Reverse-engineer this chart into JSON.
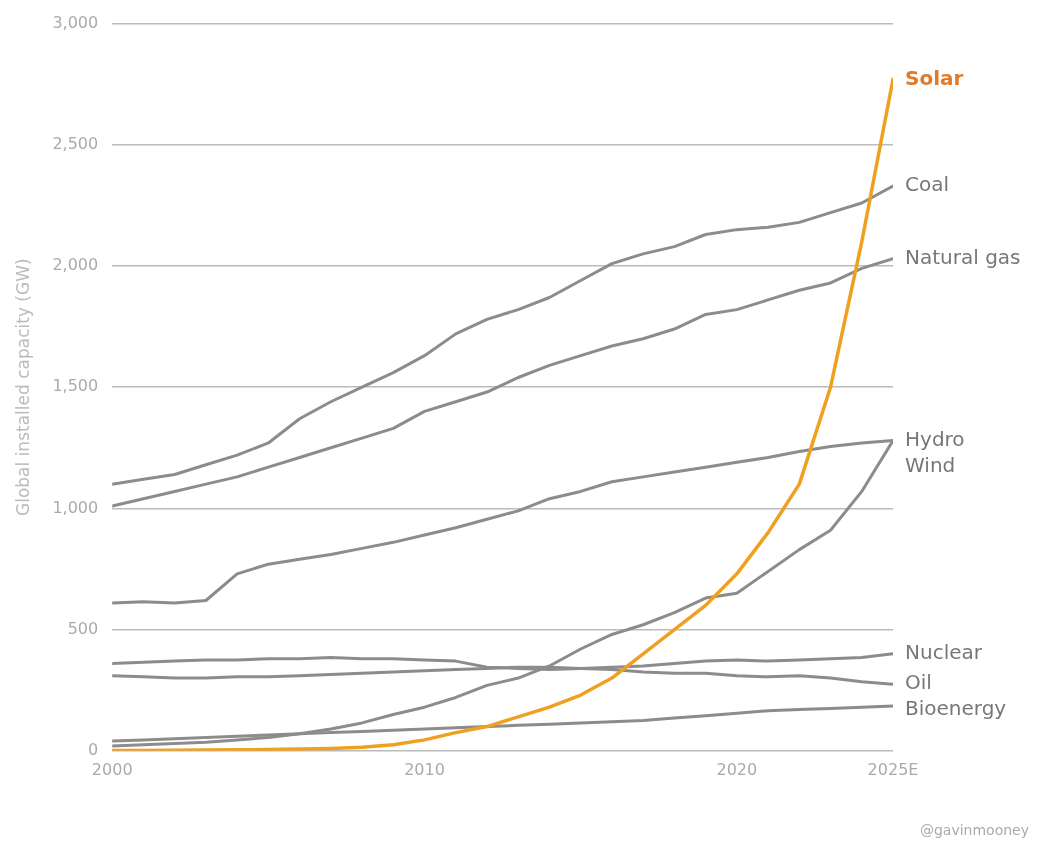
{
  "chart_data": {
    "type": "line",
    "ylabel": "Global installed capacity (GW)",
    "x": [
      2000,
      2001,
      2002,
      2003,
      2004,
      2005,
      2006,
      2007,
      2008,
      2009,
      2010,
      2011,
      2012,
      2013,
      2014,
      2015,
      2016,
      2017,
      2018,
      2019,
      2020,
      2021,
      2022,
      2023,
      2024,
      2025
    ],
    "xlim": [
      2000,
      2025
    ],
    "xticks": [
      2000,
      2010,
      2020,
      {
        "value": 2025,
        "label": "2025E"
      }
    ],
    "ylim": [
      0,
      3000
    ],
    "yticks": [
      0,
      {
        "value": 500,
        "label": "500"
      },
      {
        "value": 1000,
        "label": "1,000"
      },
      {
        "value": 1500,
        "label": "1,500"
      },
      {
        "value": 2000,
        "label": "2,000"
      },
      {
        "value": 2500,
        "label": "2,500"
      },
      {
        "value": 3000,
        "label": "3,000"
      }
    ],
    "grid": "y",
    "legend": false,
    "marker": "none",
    "line_style": "solid",
    "series": [
      {
        "name": "Solar",
        "color": "#f0a020",
        "values": [
          1,
          1,
          2,
          3,
          4,
          5,
          7,
          10,
          15,
          25,
          45,
          75,
          100,
          140,
          180,
          230,
          300,
          400,
          500,
          600,
          730,
          900,
          1100,
          1500,
          2100,
          2770
        ]
      },
      {
        "name": "Coal",
        "color": "#8c8c8c",
        "values": [
          1100,
          1120,
          1140,
          1180,
          1220,
          1270,
          1370,
          1440,
          1500,
          1560,
          1630,
          1720,
          1780,
          1820,
          1870,
          1940,
          2010,
          2050,
          2080,
          2130,
          2150,
          2160,
          2180,
          2220,
          2260,
          2330
        ]
      },
      {
        "name": "Natural gas",
        "color": "#8c8c8c",
        "values": [
          1010,
          1040,
          1070,
          1100,
          1130,
          1170,
          1210,
          1250,
          1290,
          1330,
          1400,
          1440,
          1480,
          1540,
          1590,
          1630,
          1670,
          1700,
          1740,
          1800,
          1820,
          1860,
          1900,
          1930,
          1990,
          2030
        ]
      },
      {
        "name": "Hydro",
        "color": "#8c8c8c",
        "values": [
          610,
          615,
          610,
          620,
          730,
          770,
          790,
          810,
          835,
          860,
          890,
          920,
          955,
          990,
          1040,
          1070,
          1110,
          1130,
          1150,
          1170,
          1190,
          1210,
          1235,
          1255,
          1270,
          1280
        ]
      },
      {
        "name": "Wind",
        "color": "#8c8c8c",
        "values": [
          20,
          25,
          30,
          35,
          45,
          55,
          70,
          90,
          115,
          150,
          180,
          220,
          270,
          300,
          350,
          420,
          480,
          520,
          570,
          630,
          650,
          740,
          830,
          910,
          1070,
          1280
        ]
      },
      {
        "name": "Nuclear",
        "color": "#8c8c8c",
        "values": [
          360,
          365,
          370,
          375,
          375,
          380,
          380,
          385,
          380,
          380,
          375,
          370,
          345,
          340,
          335,
          340,
          345,
          350,
          360,
          370,
          375,
          370,
          375,
          380,
          385,
          400
        ]
      },
      {
        "name": "Oil",
        "color": "#8c8c8c",
        "values": [
          310,
          305,
          300,
          300,
          305,
          305,
          310,
          315,
          320,
          325,
          330,
          335,
          340,
          345,
          345,
          340,
          335,
          325,
          320,
          320,
          310,
          305,
          310,
          300,
          285,
          275
        ]
      },
      {
        "name": "Bioenergy",
        "color": "#8c8c8c",
        "values": [
          40,
          45,
          50,
          55,
          60,
          65,
          70,
          75,
          80,
          85,
          90,
          95,
          100,
          105,
          110,
          115,
          120,
          125,
          135,
          145,
          155,
          165,
          170,
          175,
          180,
          185
        ]
      }
    ],
    "annotations": [
      "@gavinmooney"
    ]
  }
}
